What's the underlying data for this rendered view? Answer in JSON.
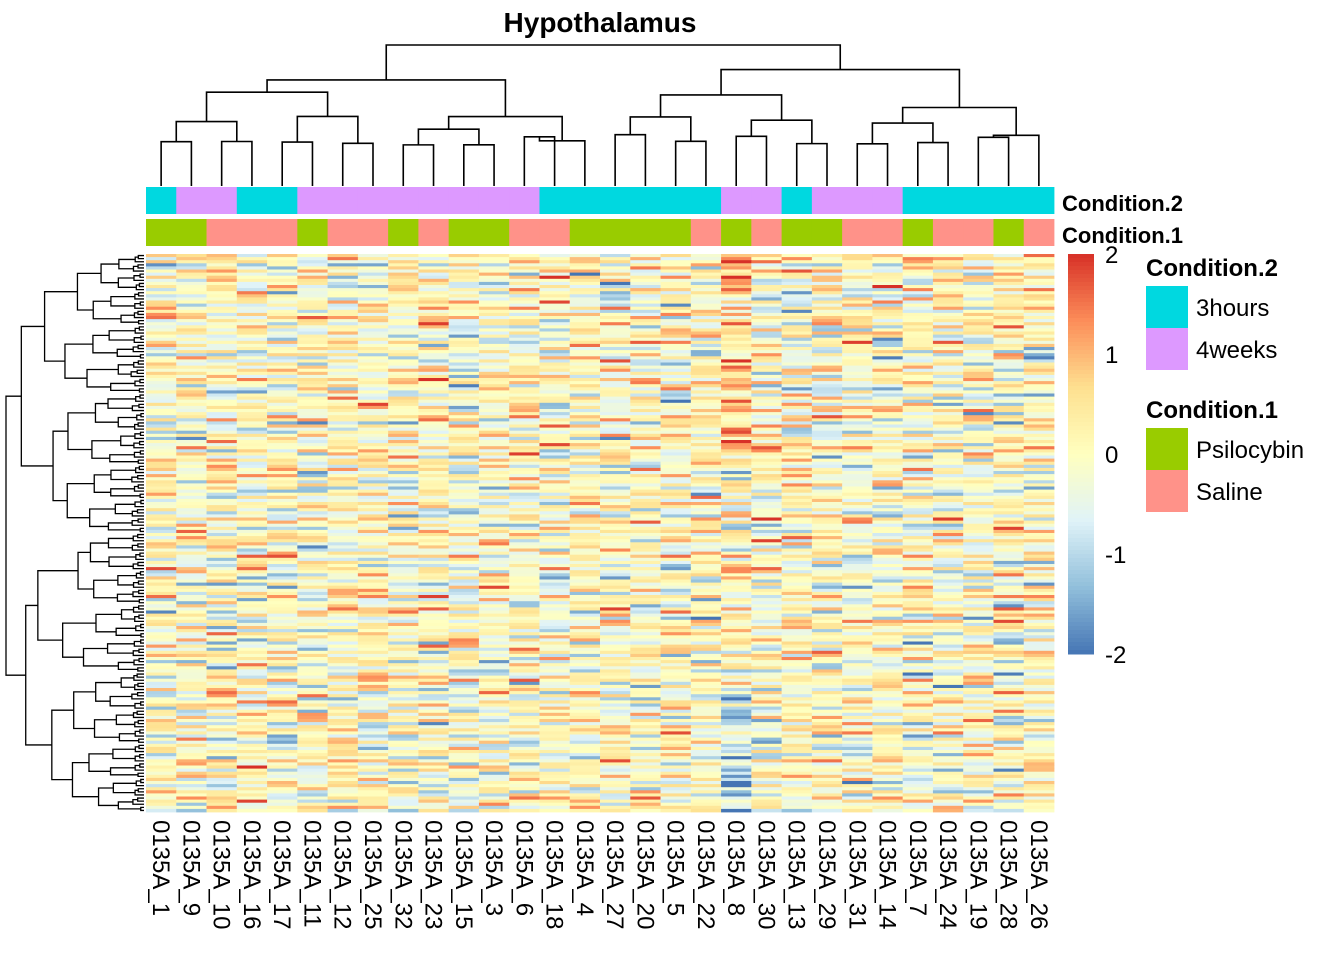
{
  "chart_data": {
    "type": "heatmap",
    "title": "Hypothalamus",
    "columns": [
      "0135A_1",
      "0135A_9",
      "0135A_10",
      "0135A_16",
      "0135A_17",
      "0135A_11",
      "0135A_12",
      "0135A_25",
      "0135A_32",
      "0135A_23",
      "0135A_15",
      "0135A_3",
      "0135A_6",
      "0135A_18",
      "0135A_4",
      "0135A_27",
      "0135A_20",
      "0135A_5",
      "0135A_22",
      "0135A_8",
      "0135A_30",
      "0135A_13",
      "0135A_29",
      "0135A_31",
      "0135A_14",
      "0135A_7",
      "0135A_24",
      "0135A_19",
      "0135A_28",
      "0135A_26"
    ],
    "annotations": [
      {
        "name": "Condition.2",
        "values": [
          "3hours",
          "4weeks",
          "4weeks",
          "3hours",
          "3hours",
          "4weeks",
          "4weeks",
          "4weeks",
          "4weeks",
          "4weeks",
          "4weeks",
          "4weeks",
          "4weeks",
          "3hours",
          "3hours",
          "3hours",
          "3hours",
          "3hours",
          "3hours",
          "4weeks",
          "4weeks",
          "3hours",
          "4weeks",
          "4weeks",
          "4weeks",
          "3hours",
          "3hours",
          "3hours",
          "3hours",
          "3hours"
        ],
        "levels": [
          {
            "label": "3hours",
            "color": "#00D8E0"
          },
          {
            "label": "4weeks",
            "color": "#DD99FF"
          }
        ]
      },
      {
        "name": "Condition.1",
        "values": [
          "Psilocybin",
          "Psilocybin",
          "Saline",
          "Saline",
          "Saline",
          "Psilocybin",
          "Saline",
          "Saline",
          "Psilocybin",
          "Saline",
          "Psilocybin",
          "Psilocybin",
          "Saline",
          "Saline",
          "Psilocybin",
          "Psilocybin",
          "Psilocybin",
          "Psilocybin",
          "Saline",
          "Psilocybin",
          "Saline",
          "Psilocybin",
          "Psilocybin",
          "Saline",
          "Saline",
          "Psilocybin",
          "Saline",
          "Saline",
          "Psilocybin",
          "Saline"
        ],
        "levels": [
          {
            "label": "Psilocybin",
            "color": "#99CC00"
          },
          {
            "label": "Saline",
            "color": "#FF9289"
          }
        ]
      }
    ],
    "color_scale": {
      "min": -2,
      "max": 2,
      "ticks": [
        "2",
        "1",
        "0",
        "-1",
        "-2"
      ],
      "colors": [
        "#4575B4",
        "#91BFDB",
        "#E0F3F8",
        "#FFFFBF",
        "#FEE090",
        "#FC8D59",
        "#D73027"
      ]
    },
    "n_rows": 180,
    "legend_placement": "right",
    "row_dendrogram": "left",
    "column_dendrogram": "top"
  }
}
